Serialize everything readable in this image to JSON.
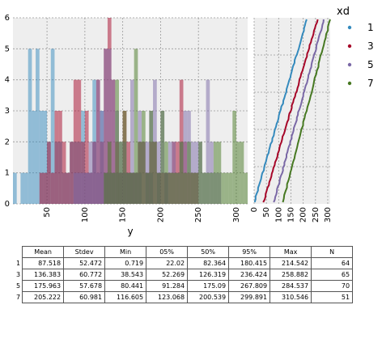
{
  "chart_data": [
    {
      "type": "bar",
      "subtype": "overlapping-histogram",
      "xlabel": "y",
      "ylabel": "",
      "xlim": [
        5,
        315
      ],
      "ylim": [
        0,
        6
      ],
      "xticks": [
        50,
        100,
        150,
        200,
        250,
        300
      ],
      "yticks": [
        0,
        1,
        2,
        3,
        4,
        5,
        6
      ],
      "grid": true,
      "bin_width": 5,
      "bin_starts": [
        5,
        10,
        15,
        20,
        25,
        30,
        35,
        40,
        45,
        50,
        55,
        60,
        65,
        70,
        75,
        80,
        85,
        90,
        95,
        100,
        105,
        110,
        115,
        120,
        125,
        130,
        135,
        140,
        145,
        150,
        155,
        160,
        165,
        170,
        175,
        180,
        185,
        190,
        195,
        200,
        205,
        210,
        215,
        220,
        225,
        230,
        235,
        240,
        245,
        250,
        255,
        260,
        265,
        270,
        275,
        280,
        285,
        290,
        295,
        300,
        305,
        310
      ],
      "series": [
        {
          "name": "1",
          "color": "#348ABD",
          "values": [
            1,
            0,
            1,
            1,
            5,
            3,
            5,
            3,
            3,
            2,
            5,
            2,
            2,
            1,
            1,
            2,
            2,
            2,
            3,
            1,
            1,
            4,
            1,
            3,
            1,
            1,
            1,
            1,
            1,
            1,
            1,
            1,
            1,
            1,
            0,
            1,
            1,
            0,
            1,
            0,
            1,
            0,
            0,
            0,
            0,
            0,
            0,
            0,
            0,
            0,
            0,
            0,
            0,
            0,
            0,
            0,
            0,
            0,
            0,
            0,
            0,
            0
          ]
        },
        {
          "name": "3",
          "color": "#A60628",
          "values": [
            0,
            0,
            0,
            0,
            0,
            0,
            0,
            1,
            1,
            2,
            1,
            3,
            3,
            2,
            1,
            2,
            4,
            4,
            2,
            3,
            1,
            2,
            4,
            2,
            5,
            6,
            4,
            2,
            1,
            3,
            2,
            1,
            1,
            2,
            2,
            1,
            2,
            2,
            1,
            1,
            1,
            1,
            2,
            2,
            4,
            2,
            1,
            1,
            1,
            0,
            0,
            0,
            0,
            0,
            0,
            0,
            0,
            0,
            0,
            0,
            0,
            0
          ]
        },
        {
          "name": "5",
          "color": "#7A68A6",
          "values": [
            0,
            0,
            0,
            0,
            0,
            0,
            0,
            0,
            0,
            0,
            0,
            0,
            0,
            0,
            0,
            0,
            1,
            1,
            1,
            1,
            2,
            2,
            4,
            3,
            5,
            5,
            4,
            3,
            2,
            2,
            1,
            4,
            1,
            3,
            2,
            2,
            3,
            4,
            2,
            3,
            1,
            2,
            2,
            1,
            2,
            3,
            3,
            2,
            2,
            2,
            1,
            4,
            2,
            1,
            1,
            0,
            0,
            0,
            0,
            0,
            0,
            0
          ]
        },
        {
          "name": "7",
          "color": "#467821",
          "values": [
            0,
            0,
            0,
            0,
            0,
            0,
            0,
            0,
            0,
            0,
            0,
            0,
            0,
            0,
            0,
            0,
            0,
            0,
            0,
            0,
            0,
            0,
            0,
            0,
            1,
            2,
            1,
            4,
            2,
            3,
            1,
            1,
            5,
            2,
            3,
            1,
            3,
            2,
            1,
            3,
            2,
            1,
            1,
            1,
            2,
            1,
            2,
            1,
            1,
            2,
            1,
            1,
            1,
            2,
            2,
            1,
            1,
            1,
            3,
            2,
            2,
            1
          ]
        }
      ]
    },
    {
      "type": "line",
      "subtype": "sorted-values",
      "xlim": [
        0,
        310
      ],
      "xticks": [
        0,
        50,
        100,
        150,
        200,
        250,
        300
      ],
      "grid": true,
      "series": [
        {
          "name": "1",
          "color": "#348ABD",
          "n": 64,
          "min": 0.719,
          "max": 214.542,
          "mean": 87.518
        },
        {
          "name": "3",
          "color": "#A60628",
          "n": 65,
          "min": 38.543,
          "max": 258.882,
          "mean": 136.383
        },
        {
          "name": "5",
          "color": "#7A68A6",
          "n": 70,
          "min": 80.441,
          "max": 284.537,
          "mean": 175.963
        },
        {
          "name": "7",
          "color": "#467821",
          "n": 51,
          "min": 116.605,
          "max": 310.546,
          "mean": 205.222
        }
      ]
    }
  ],
  "legend": {
    "title": "xd",
    "placement": "right",
    "entries": [
      {
        "label": "1",
        "color": "#348ABD"
      },
      {
        "label": "3",
        "color": "#A60628"
      },
      {
        "label": "5",
        "color": "#7A68A6"
      },
      {
        "label": "7",
        "color": "#467821"
      }
    ]
  },
  "stats_table": {
    "columns": [
      "Mean",
      "Stdev",
      "Min",
      "05%",
      "50%",
      "95%",
      "Max",
      "N"
    ],
    "rows": [
      {
        "index": "1",
        "cells": [
          "87.518",
          "52.472",
          "0.719",
          "22.02",
          "82.364",
          "180.415",
          "214.542",
          "64"
        ]
      },
      {
        "index": "3",
        "cells": [
          "136.383",
          "60.772",
          "38.543",
          "52.269",
          "126.319",
          "236.424",
          "258.882",
          "65"
        ]
      },
      {
        "index": "5",
        "cells": [
          "175.963",
          "57.678",
          "80.441",
          "91.284",
          "175.09",
          "267.809",
          "284.537",
          "70"
        ]
      },
      {
        "index": "7",
        "cells": [
          "205.222",
          "60.981",
          "116.605",
          "123.068",
          "200.539",
          "299.891",
          "310.546",
          "51"
        ]
      }
    ]
  }
}
